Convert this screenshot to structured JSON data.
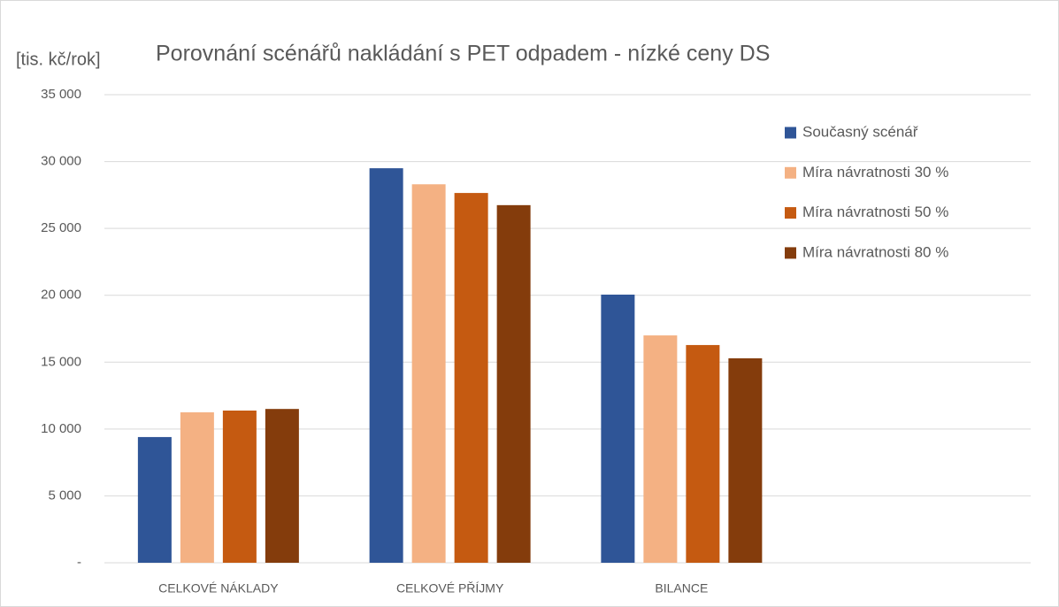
{
  "chart_data": {
    "type": "bar",
    "title": "Porovnání scénářů nakládání s PET odpadem - nízké ceny DS",
    "y_label": "[tis. kč/rok]",
    "categories": [
      "CELKOVÉ NÁKLADY",
      "CELKOVÉ PŘÍJMY",
      "BILANCE",
      null
    ],
    "series": [
      {
        "name": "Současný scénář",
        "color": "#2f5597",
        "values": [
          9400,
          29500,
          20050,
          null
        ]
      },
      {
        "name": "Míra návratnosti 30 %",
        "color": "#f4b183",
        "values": [
          11250,
          28300,
          17000,
          null
        ]
      },
      {
        "name": "Míra návratnosti 50 %",
        "color": "#c55a11",
        "values": [
          11380,
          27650,
          16280,
          null
        ]
      },
      {
        "name": "Míra návratnosti 80 %",
        "color": "#843c0c",
        "values": [
          11500,
          26740,
          15290,
          null
        ]
      }
    ],
    "ylim": [
      0,
      35000
    ],
    "yticks": [
      {
        "value": 0,
        "label": "-"
      },
      {
        "value": 5000,
        "label": "5 000"
      },
      {
        "value": 10000,
        "label": "10 000"
      },
      {
        "value": 15000,
        "label": "15 000"
      },
      {
        "value": 20000,
        "label": "20 000"
      },
      {
        "value": 25000,
        "label": "25 000"
      },
      {
        "value": 30000,
        "label": "30 000"
      },
      {
        "value": 35000,
        "label": "35 000"
      }
    ],
    "grid": true,
    "legend": "top-right"
  }
}
